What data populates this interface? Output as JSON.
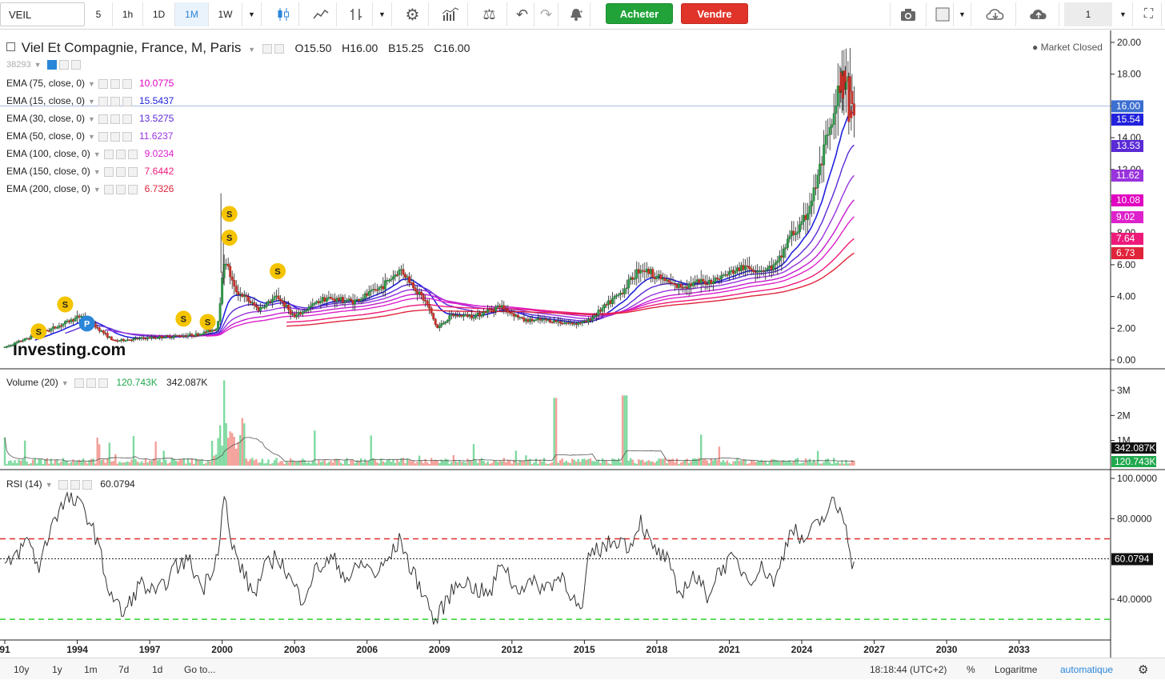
{
  "toolbar": {
    "symbol": "VEIL",
    "intervals": [
      "5",
      "1h",
      "1D",
      "1M",
      "1W"
    ],
    "active_interval": "1M",
    "buy_label": "Acheter",
    "sell_label": "Vendre",
    "layout_count": "1",
    "icons": [
      "candles-icon",
      "line-chart-icon",
      "bar-chart-icon",
      "settings-icon",
      "indicators-icon",
      "compare-icon",
      "undo-icon",
      "redo-icon",
      "alert-icon",
      "camera-icon",
      "layout-icon",
      "cloud-download-icon",
      "cloud-upload-icon",
      "fullscreen-icon"
    ]
  },
  "header": {
    "title": "Viel Et Compagnie, France, M, Paris",
    "ohlc": {
      "O": "15.50",
      "H": "16.00",
      "B": "15.25",
      "C": "16.00"
    },
    "market_status": "Market Closed",
    "small_id": "38293"
  },
  "ema": [
    {
      "label": "EMA (75, close, 0)",
      "value": "10.0775",
      "color": "#e000c0",
      "axis_label": "10.08"
    },
    {
      "label": "EMA (15, close, 0)",
      "value": "15.5437",
      "color": "#2222dd",
      "axis_label": "15.54"
    },
    {
      "label": "EMA (30, close, 0)",
      "value": "13.5275",
      "color": "#5a2ad6",
      "axis_label": "13.53"
    },
    {
      "label": "EMA (50, close, 0)",
      "value": "11.6237",
      "color": "#9933dd",
      "axis_label": "11.62"
    },
    {
      "label": "EMA (100, close, 0)",
      "value": "9.0234",
      "color": "#dd22cc",
      "axis_label": "9.02"
    },
    {
      "label": "EMA (150, close, 0)",
      "value": "7.6442",
      "color": "#ee1a7a",
      "axis_label": "7.64"
    },
    {
      "label": "EMA (200, close, 0)",
      "value": "6.7326",
      "color": "#e0243a",
      "axis_label": "6.73"
    }
  ],
  "price_axis_label": "16.00",
  "watermark": "Investing.com",
  "volume": {
    "label": "Volume (20)",
    "value1": "120.743K",
    "value2": "342.087K",
    "axis_ticks": [
      "3M",
      "2M",
      "1M"
    ]
  },
  "rsi": {
    "label": "RSI (14)",
    "value": "60.0794",
    "axis_ticks": [
      "100.0000",
      "80.0000",
      "40.0000"
    ]
  },
  "bottom": {
    "ranges": [
      "10y",
      "1y",
      "1m",
      "7d",
      "1d"
    ],
    "goto": "Go to...",
    "time": "18:18:44 (UTC+2)",
    "percent": "%",
    "log": "Logaritme",
    "auto": "automatique"
  },
  "chart_data": {
    "type": "candlestick",
    "title": "Viel Et Compagnie, France, M, Paris",
    "x_ticks": [
      "91",
      "1994",
      "1997",
      "2000",
      "2003",
      "2006",
      "2009",
      "2012",
      "2015",
      "2018",
      "2021",
      "2024",
      "2027",
      "2030",
      "2033"
    ],
    "y_ticks": [
      "20.00",
      "18.00",
      "16.00",
      "14.00",
      "12.00",
      "10.00",
      "8.00",
      "6.00",
      "4.00",
      "2.00",
      "0.00"
    ],
    "ylim": [
      0,
      20
    ],
    "xlim": [
      1991,
      2034.5
    ],
    "price_anchors": [
      [
        1991.0,
        0.8
      ],
      [
        1993.0,
        2.0
      ],
      [
        1994.2,
        2.8
      ],
      [
        1995.5,
        1.2
      ],
      [
        1997.0,
        1.4
      ],
      [
        1999.0,
        1.6
      ],
      [
        1999.8,
        2.0
      ],
      [
        2000.1,
        6.5
      ],
      [
        2000.5,
        4.5
      ],
      [
        2001.5,
        3.2
      ],
      [
        2002.3,
        4.0
      ],
      [
        2003.0,
        2.7
      ],
      [
        2004.2,
        3.9
      ],
      [
        2005.5,
        3.7
      ],
      [
        2006.5,
        4.5
      ],
      [
        2007.4,
        5.7
      ],
      [
        2008.5,
        3.5
      ],
      [
        2008.9,
        2.0
      ],
      [
        2009.5,
        2.8
      ],
      [
        2010.5,
        2.8
      ],
      [
        2011.5,
        3.4
      ],
      [
        2012.5,
        2.5
      ],
      [
        2013.5,
        2.5
      ],
      [
        2014.5,
        2.3
      ],
      [
        2015.1,
        2.4
      ],
      [
        2016.5,
        4.2
      ],
      [
        2017.3,
        5.8
      ],
      [
        2018.0,
        5.3
      ],
      [
        2018.8,
        4.6
      ],
      [
        2019.5,
        4.8
      ],
      [
        2020.3,
        5.0
      ],
      [
        2021.5,
        5.8
      ],
      [
        2022.5,
        5.7
      ],
      [
        2023.0,
        6.0
      ],
      [
        2023.5,
        7.8
      ],
      [
        2024.0,
        8.4
      ],
      [
        2024.5,
        10.5
      ],
      [
        2025.0,
        13.5
      ],
      [
        2025.4,
        15.5
      ],
      [
        2025.6,
        17.5
      ],
      [
        2025.9,
        18.0
      ],
      [
        2026.1,
        16.0
      ]
    ],
    "ema_endpoints": {
      "ema15": 15.54,
      "ema30": 13.53,
      "ema50": 11.62,
      "ema75": 10.08,
      "ema100": 9.02,
      "ema150": 7.64,
      "ema200": 6.73
    },
    "volume_ylim": [
      0,
      3500000
    ],
    "rsi_ylim": [
      20,
      100
    ],
    "rsi_levels": {
      "upper": 70,
      "lower": 30,
      "mid": 60.08
    },
    "rsi_anchors": [
      [
        1991.0,
        55
      ],
      [
        1992.0,
        70
      ],
      [
        1992.4,
        55
      ],
      [
        1993.0,
        80
      ],
      [
        1993.6,
        90
      ],
      [
        1994.3,
        85
      ],
      [
        1994.8,
        70
      ],
      [
        1995.3,
        45
      ],
      [
        1995.9,
        32
      ],
      [
        1996.6,
        48
      ],
      [
        1997.3,
        42
      ],
      [
        1998.0,
        55
      ],
      [
        1998.6,
        60
      ],
      [
        1999.2,
        45
      ],
      [
        1999.8,
        62
      ],
      [
        2000.1,
        94
      ],
      [
        2000.3,
        70
      ],
      [
        2000.8,
        55
      ],
      [
        2001.3,
        42
      ],
      [
        2001.8,
        56
      ],
      [
        2002.3,
        62
      ],
      [
        2002.8,
        50
      ],
      [
        2003.3,
        40
      ],
      [
        2003.9,
        55
      ],
      [
        2004.6,
        60
      ],
      [
        2005.2,
        50
      ],
      [
        2005.8,
        58
      ],
      [
        2006.4,
        52
      ],
      [
        2007.0,
        62
      ],
      [
        2007.4,
        70
      ],
      [
        2007.8,
        55
      ],
      [
        2008.4,
        42
      ],
      [
        2008.8,
        28
      ],
      [
        2009.3,
        40
      ],
      [
        2009.9,
        50
      ],
      [
        2010.5,
        45
      ],
      [
        2011.1,
        42
      ],
      [
        2011.6,
        60
      ],
      [
        2012.1,
        45
      ],
      [
        2012.7,
        48
      ],
      [
        2013.4,
        46
      ],
      [
        2014.1,
        52
      ],
      [
        2014.7,
        36
      ],
      [
        2014.9,
        33
      ],
      [
        2015.2,
        62
      ],
      [
        2015.8,
        66
      ],
      [
        2016.4,
        70
      ],
      [
        2016.9,
        66
      ],
      [
        2017.3,
        80
      ],
      [
        2017.8,
        65
      ],
      [
        2018.4,
        60
      ],
      [
        2018.9,
        42
      ],
      [
        2019.5,
        52
      ],
      [
        2020.1,
        42
      ],
      [
        2020.6,
        55
      ],
      [
        2021.2,
        60
      ],
      [
        2021.8,
        50
      ],
      [
        2022.4,
        56
      ],
      [
        2022.9,
        48
      ],
      [
        2023.3,
        65
      ],
      [
        2023.6,
        78
      ],
      [
        2024.0,
        68
      ],
      [
        2024.5,
        75
      ],
      [
        2025.0,
        82
      ],
      [
        2025.3,
        88
      ],
      [
        2025.8,
        80
      ],
      [
        2026.1,
        58
      ]
    ]
  }
}
